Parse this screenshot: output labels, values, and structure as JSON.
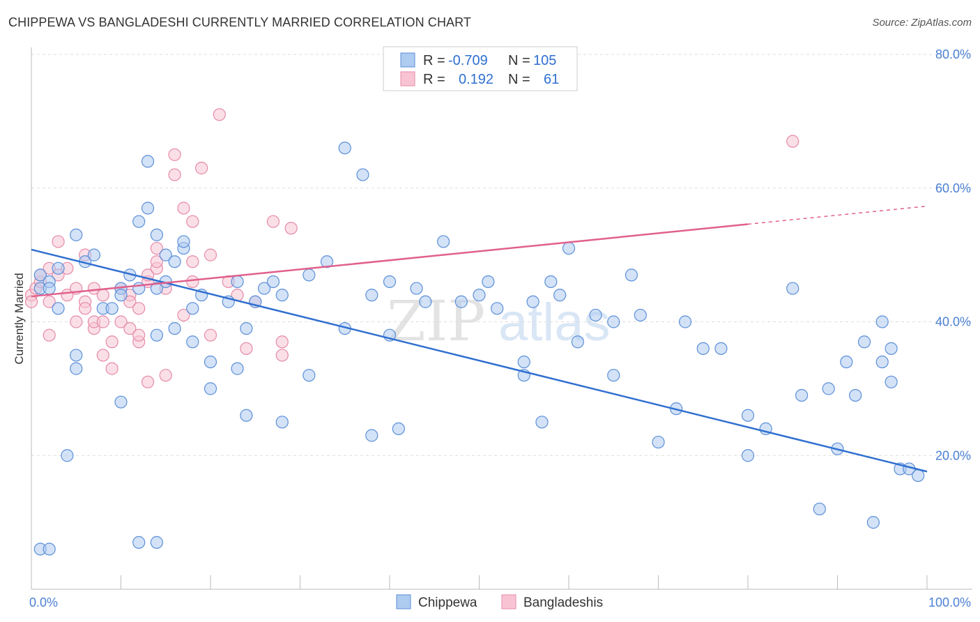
{
  "title": "CHIPPEWA VS BANGLADESHI CURRENTLY MARRIED CORRELATION CHART",
  "source": "Source: ZipAtlas.com",
  "watermark": {
    "part1": "ZIP",
    "part2": "atlas"
  },
  "colors": {
    "chippewa_fill": "#aecbf0",
    "chippewa_stroke": "#5b8fd8",
    "chippewa_line": "#2f6fd0",
    "bangladeshi_fill": "#f8c4d4",
    "bangladeshi_stroke": "#e58aa8",
    "bangladeshi_line": "#e0608c",
    "value_blue": "#2f6fd0",
    "grid": "#dddddd"
  },
  "legend": {
    "rows": [
      {
        "r_label": "R =",
        "r_value": "-0.709",
        "n_label": "N =",
        "n_value": "105"
      },
      {
        "r_label": "R =",
        "r_value": "0.192",
        "n_label": "N =",
        "n_value": "61"
      }
    ]
  },
  "chart_data": {
    "type": "scatter",
    "title": "CHIPPEWA VS BANGLADESHI CURRENTLY MARRIED CORRELATION CHART",
    "xlabel": "",
    "ylabel": "Currently Married",
    "xlim": [
      0,
      100
    ],
    "ylim": [
      0,
      80
    ],
    "x_tick_labels": [
      "0.0%",
      "100.0%"
    ],
    "y_tick_labels": [
      "20.0%",
      "40.0%",
      "60.0%",
      "80.0%"
    ],
    "y_ticks": [
      20,
      40,
      60,
      80
    ],
    "grid": true,
    "legend_position": "top-center",
    "series": [
      {
        "name": "Chippewa",
        "r": -0.709,
        "n": 105,
        "trend": {
          "x1": 0,
          "y1": 50.8,
          "x2": 100,
          "y2": 17.6
        },
        "points": [
          [
            1,
            47
          ],
          [
            1,
            45
          ],
          [
            2,
            46
          ],
          [
            2,
            45
          ],
          [
            3,
            42
          ],
          [
            3,
            48
          ],
          [
            5,
            35
          ],
          [
            5,
            53
          ],
          [
            6,
            49
          ],
          [
            7,
            50
          ],
          [
            8,
            42
          ],
          [
            9,
            42
          ],
          [
            10,
            45
          ],
          [
            10,
            44
          ],
          [
            11,
            47
          ],
          [
            12,
            45
          ],
          [
            12,
            55
          ],
          [
            13,
            57
          ],
          [
            13,
            64
          ],
          [
            14,
            38
          ],
          [
            14,
            45
          ],
          [
            14,
            53
          ],
          [
            15,
            46
          ],
          [
            15,
            50
          ],
          [
            16,
            49
          ],
          [
            16,
            39
          ],
          [
            17,
            51
          ],
          [
            17,
            52
          ],
          [
            18,
            42
          ],
          [
            18,
            37
          ],
          [
            19,
            44
          ],
          [
            20,
            34
          ],
          [
            20,
            30
          ],
          [
            22,
            43
          ],
          [
            23,
            46
          ],
          [
            23,
            33
          ],
          [
            24,
            26
          ],
          [
            24,
            39
          ],
          [
            25,
            43
          ],
          [
            26,
            45
          ],
          [
            27,
            46
          ],
          [
            28,
            25
          ],
          [
            28,
            44
          ],
          [
            31,
            47
          ],
          [
            31,
            32
          ],
          [
            33,
            49
          ],
          [
            35,
            39
          ],
          [
            35,
            66
          ],
          [
            37,
            62
          ],
          [
            38,
            44
          ],
          [
            38,
            23
          ],
          [
            40,
            46
          ],
          [
            40,
            38
          ],
          [
            41,
            24
          ],
          [
            43,
            45
          ],
          [
            44,
            43
          ],
          [
            46,
            52
          ],
          [
            48,
            43
          ],
          [
            50,
            44
          ],
          [
            51,
            46
          ],
          [
            52,
            42
          ],
          [
            55,
            34
          ],
          [
            55,
            32
          ],
          [
            56,
            43
          ],
          [
            57,
            25
          ],
          [
            58,
            46
          ],
          [
            59,
            44
          ],
          [
            60,
            51
          ],
          [
            61,
            37
          ],
          [
            63,
            41
          ],
          [
            65,
            40
          ],
          [
            65,
            32
          ],
          [
            67,
            47
          ],
          [
            68,
            41
          ],
          [
            70,
            22
          ],
          [
            72,
            27
          ],
          [
            73,
            40
          ],
          [
            75,
            36
          ],
          [
            77,
            36
          ],
          [
            80,
            20
          ],
          [
            80,
            26
          ],
          [
            82,
            24
          ],
          [
            85,
            45
          ],
          [
            86,
            29
          ],
          [
            88,
            12
          ],
          [
            89,
            30
          ],
          [
            90,
            21
          ],
          [
            91,
            34
          ],
          [
            92,
            29
          ],
          [
            93,
            37
          ],
          [
            94,
            10
          ],
          [
            95,
            40
          ],
          [
            95,
            34
          ],
          [
            96,
            31
          ],
          [
            97,
            18
          ],
          [
            98,
            18
          ],
          [
            99,
            17
          ],
          [
            1,
            6
          ],
          [
            2,
            6
          ],
          [
            4,
            20
          ],
          [
            12,
            7
          ],
          [
            14,
            7
          ],
          [
            5,
            33
          ],
          [
            10,
            28
          ],
          [
            96,
            36
          ]
        ]
      },
      {
        "name": "Bangladeshis",
        "r": 0.192,
        "n": 61,
        "trend": {
          "x1": 0,
          "y1": 43.8,
          "x2": 80,
          "y2": 54.6,
          "dash_to_x": 100,
          "dash_to_y": 57.3
        },
        "points": [
          [
            0,
            44
          ],
          [
            0,
            43
          ],
          [
            0.5,
            45
          ],
          [
            1,
            46
          ],
          [
            1,
            47
          ],
          [
            2,
            48
          ],
          [
            2,
            43
          ],
          [
            2,
            38
          ],
          [
            3,
            47
          ],
          [
            3,
            52
          ],
          [
            4,
            48
          ],
          [
            4,
            44
          ],
          [
            5,
            45
          ],
          [
            5,
            40
          ],
          [
            6,
            50
          ],
          [
            6,
            43
          ],
          [
            6,
            42
          ],
          [
            7,
            45
          ],
          [
            7,
            39
          ],
          [
            7,
            40
          ],
          [
            8,
            44
          ],
          [
            8,
            40
          ],
          [
            8,
            35
          ],
          [
            9,
            37
          ],
          [
            9,
            33
          ],
          [
            10,
            45
          ],
          [
            10,
            40
          ],
          [
            11,
            44
          ],
          [
            11,
            43
          ],
          [
            11,
            39
          ],
          [
            12,
            37
          ],
          [
            12,
            42
          ],
          [
            12,
            38
          ],
          [
            13,
            46
          ],
          [
            13,
            47
          ],
          [
            13,
            31
          ],
          [
            14,
            48
          ],
          [
            14,
            51
          ],
          [
            14,
            49
          ],
          [
            15,
            45
          ],
          [
            15,
            32
          ],
          [
            16,
            62
          ],
          [
            16,
            65
          ],
          [
            17,
            41
          ],
          [
            17,
            57
          ],
          [
            18,
            55
          ],
          [
            18,
            49
          ],
          [
            18,
            46
          ],
          [
            19,
            63
          ],
          [
            20,
            38
          ],
          [
            20,
            50
          ],
          [
            21,
            71
          ],
          [
            22,
            46
          ],
          [
            23,
            44
          ],
          [
            24,
            36
          ],
          [
            25,
            43
          ],
          [
            27,
            55
          ],
          [
            28,
            37
          ],
          [
            28,
            35
          ],
          [
            29,
            54
          ],
          [
            85,
            67
          ]
        ]
      }
    ]
  },
  "bottom_legend": {
    "series1": "Chippewa",
    "series2": "Bangladeshis"
  }
}
